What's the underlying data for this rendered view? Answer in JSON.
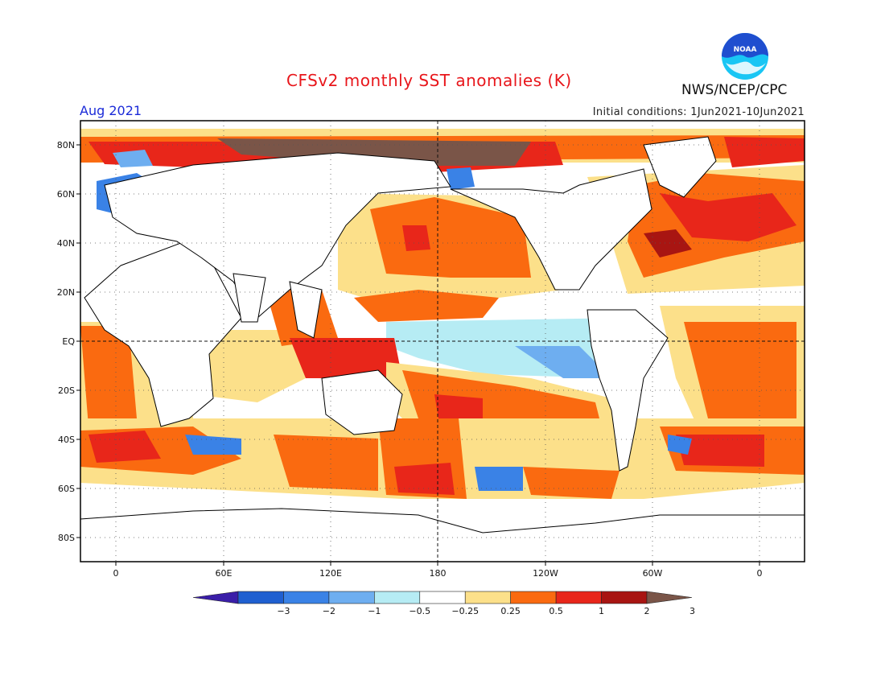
{
  "header": {
    "title": "CFSv2 monthly SST anomalies (K)",
    "month": "Aug 2021",
    "initial_conditions": "Initial conditions: 1Jun2021-10Jun2021",
    "organization": "NWS/NCEP/CPC",
    "logo_text": "NOAA"
  },
  "map": {
    "lat_labels": [
      "80N",
      "60N",
      "40N",
      "20N",
      "EQ",
      "20S",
      "40S",
      "60S",
      "80S"
    ],
    "lon_labels": [
      "0",
      "60E",
      "120E",
      "180",
      "120W",
      "60W",
      "0"
    ]
  },
  "colorbar": {
    "labels": [
      "-3",
      "-2",
      "-1",
      "-0.5",
      "-0.25",
      "0.25",
      "0.5",
      "1",
      "2",
      "3"
    ],
    "colors": [
      "#3a1ea8",
      "#1f5fd0",
      "#3a82e6",
      "#6eaef0",
      "#b6ecf4",
      "#ffffff",
      "#fce08a",
      "#fa6a10",
      "#e8261a",
      "#a81512",
      "#7a5548"
    ]
  },
  "colors": {
    "title": "#e8161b",
    "month": "#1b2bd8",
    "noaa_blue": "#1f4ecf",
    "noaa_cyan": "#19c6f4"
  }
}
